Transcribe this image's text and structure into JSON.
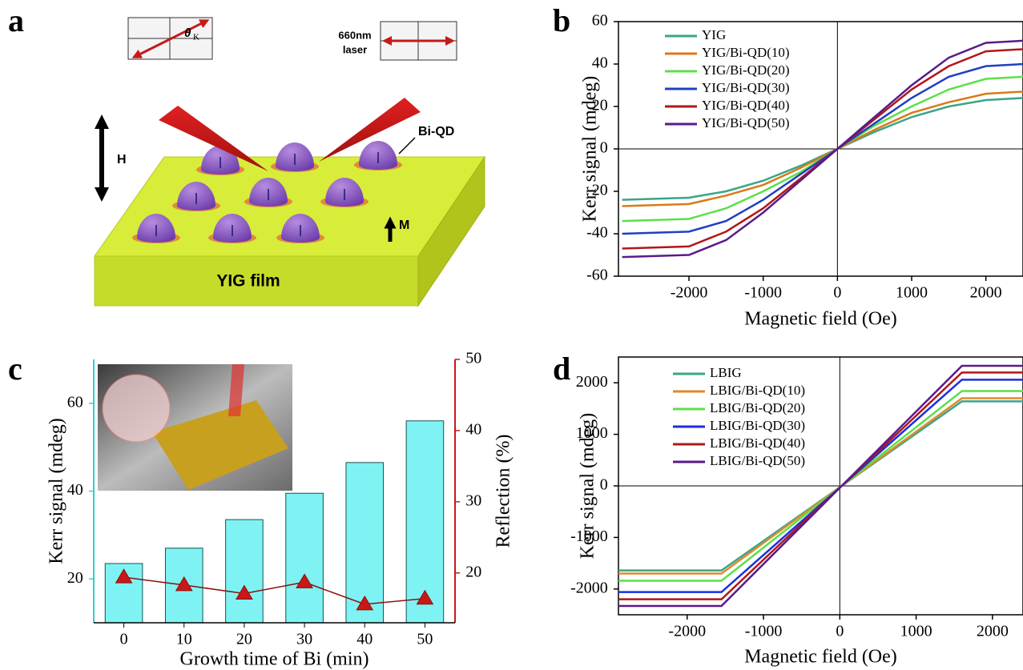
{
  "diagram": {
    "panel": "a",
    "theta": "θ",
    "theta_sub": "K",
    "laser_wavelength": "660nm",
    "laser": "laser",
    "dot_label": "Bi-QD",
    "field": "H",
    "magnetization": "M",
    "film": "YIG film"
  },
  "chart_data": [
    {
      "panel": "b",
      "type": "line",
      "xlabel": "Magnetic field (Oe)",
      "ylabel": "Kerr signal (mdeg)",
      "x": [
        -2900,
        -2000,
        -1500,
        -1000,
        -500,
        0,
        500,
        1000,
        1500,
        2000,
        2500
      ],
      "xlim": [
        -2950,
        2500
      ],
      "xticks": [
        -2000,
        -1000,
        0,
        1000,
        2000
      ],
      "ylim": [
        -60,
        60
      ],
      "yticks": [
        -60,
        -40,
        -20,
        0,
        20,
        40,
        60
      ],
      "series": [
        {
          "name": "YIG",
          "color": "#3aa58a",
          "values": [
            -24,
            -23,
            -20,
            -15,
            -8,
            0,
            8,
            15,
            20,
            23,
            24
          ]
        },
        {
          "name": "YIG/Bi-QD(10)",
          "color": "#d97a1a",
          "values": [
            -27,
            -26,
            -22,
            -17,
            -9,
            0,
            9,
            17,
            22,
            26,
            27
          ]
        },
        {
          "name": "YIG/Bi-QD(20)",
          "color": "#5be04a",
          "values": [
            -34,
            -33,
            -28,
            -20,
            -11,
            0,
            11,
            20,
            28,
            33,
            34
          ]
        },
        {
          "name": "YIG/Bi-QD(30)",
          "color": "#2040c0",
          "values": [
            -40,
            -39,
            -34,
            -24,
            -12,
            0,
            12,
            24,
            34,
            39,
            40
          ]
        },
        {
          "name": "YIG/Bi-QD(40)",
          "color": "#b01818",
          "values": [
            -47,
            -46,
            -39,
            -28,
            -14,
            0,
            14,
            28,
            39,
            46,
            47
          ]
        },
        {
          "name": "YIG/Bi-QD(50)",
          "color": "#5a1a8a",
          "values": [
            -51,
            -50,
            -43,
            -30,
            -15,
            0,
            15,
            30,
            43,
            50,
            51
          ]
        }
      ]
    },
    {
      "panel": "c",
      "type": "bar",
      "xlabel": "Growth time of Bi (min)",
      "ylabel": "Kerr signal (mdeg)",
      "y2label": "Reflection (%)",
      "categories": [
        "0",
        "10",
        "20",
        "30",
        "40",
        "50"
      ],
      "ylim": [
        10,
        70
      ],
      "yticks": [
        20,
        40,
        60
      ],
      "y2lim": [
        13,
        50
      ],
      "y2ticks": [
        20,
        30,
        40,
        50
      ],
      "series": [
        {
          "color": "#7ff3f3",
          "values": [
            23.5,
            27,
            33.5,
            39.5,
            46.5,
            56
          ]
        },
        {
          "axis": "y2",
          "color": "#c81818",
          "values": [
            19.4,
            18.3,
            17.1,
            18.7,
            15.6,
            16.4
          ]
        }
      ]
    },
    {
      "panel": "d",
      "type": "line",
      "xlabel": "Magnetic field (Oe)",
      "ylabel": "Kerr signal (mdeg)",
      "x": [
        -2900,
        -1550,
        1600,
        2400
      ],
      "xlim": [
        -2900,
        2400
      ],
      "xticks": [
        -2000,
        -1000,
        0,
        1000,
        2000
      ],
      "ylim": [
        -2500,
        2500
      ],
      "yticks": [
        -2000,
        -1000,
        0,
        1000,
        2000
      ],
      "series": [
        {
          "name": "LBIG",
          "color": "#3aa58a",
          "values": [
            -1640,
            -1640,
            1640,
            1640
          ]
        },
        {
          "name": "LBIG/Bi-QD(10)",
          "color": "#e08a2a",
          "values": [
            -1700,
            -1700,
            1700,
            1700
          ]
        },
        {
          "name": "LBIG/Bi-QD(20)",
          "color": "#5be04a",
          "values": [
            -1840,
            -1840,
            1840,
            1840
          ]
        },
        {
          "name": "LBIG/Bi-QD(30)",
          "color": "#1a2ee0",
          "values": [
            -2060,
            -2060,
            2060,
            2060
          ]
        },
        {
          "name": "LBIG/Bi-QD(40)",
          "color": "#b01818",
          "values": [
            -2200,
            -2200,
            2200,
            2200
          ]
        },
        {
          "name": "LBIG/Bi-QD(50)",
          "color": "#5a1a8a",
          "values": [
            -2330,
            -2330,
            2330,
            2330
          ]
        }
      ]
    }
  ]
}
